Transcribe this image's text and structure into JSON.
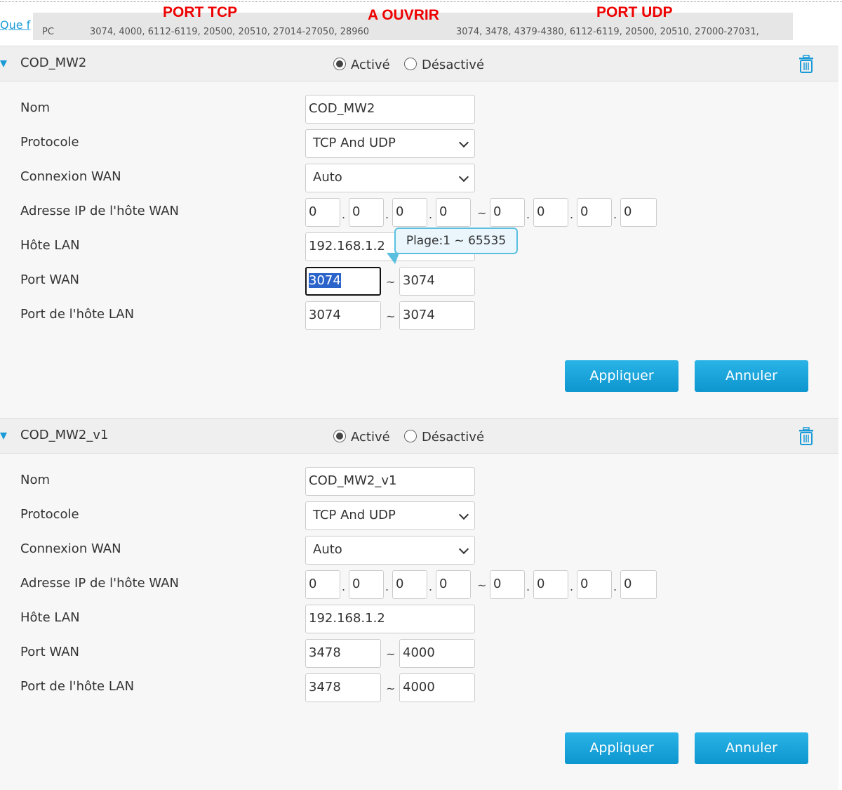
{
  "top": {
    "link": "Que f",
    "pc": "PC",
    "tcp_ports": "3074, 4000, 6112-6119, 20500, 20510, 27014-27050, 28960",
    "udp_ports": "3074, 3478, 4379-4380, 6112-6119, 20500, 20510, 27000-27031,",
    "annot_tcp": "PORT TCP",
    "annot_open": "A OUVRIR",
    "annot_udp": "PORT UDP"
  },
  "labels": {
    "nom": "Nom",
    "protocole": "Protocole",
    "wan": "Connexion WAN",
    "ip": "Adresse IP de l'hôte WAN",
    "lan": "Hôte LAN",
    "port_wan": "Port WAN",
    "port_lan": "Port de l'hôte LAN",
    "active": "Activé",
    "inactive": "Désactivé",
    "apply": "Appliquer",
    "cancel": "Annuler",
    "sep_tilde": "~",
    "sep_dot": "."
  },
  "tooltip": "Plage:1 ~ 65535",
  "sections": [
    {
      "title": "COD_MW2",
      "enabled": true,
      "nom": "COD_MW2",
      "protocole": "TCP And UDP",
      "wan": "Auto",
      "ip": [
        "0",
        "0",
        "0",
        "0",
        "0",
        "0",
        "0",
        "0"
      ],
      "lan_host": "192.168.1.2",
      "port_wan": [
        "3074",
        "3074"
      ],
      "port_lan": [
        "3074",
        "3074"
      ]
    },
    {
      "title": "COD_MW2_v1",
      "enabled": true,
      "nom": "COD_MW2_v1",
      "protocole": "TCP And UDP",
      "wan": "Auto",
      "ip": [
        "0",
        "0",
        "0",
        "0",
        "0",
        "0",
        "0",
        "0"
      ],
      "lan_host": "192.168.1.2",
      "port_wan": [
        "3478",
        "4000"
      ],
      "port_lan": [
        "3478",
        "4000"
      ]
    }
  ],
  "colors": {
    "accent": "#1a9bd7",
    "annotation": "#ee0000"
  }
}
